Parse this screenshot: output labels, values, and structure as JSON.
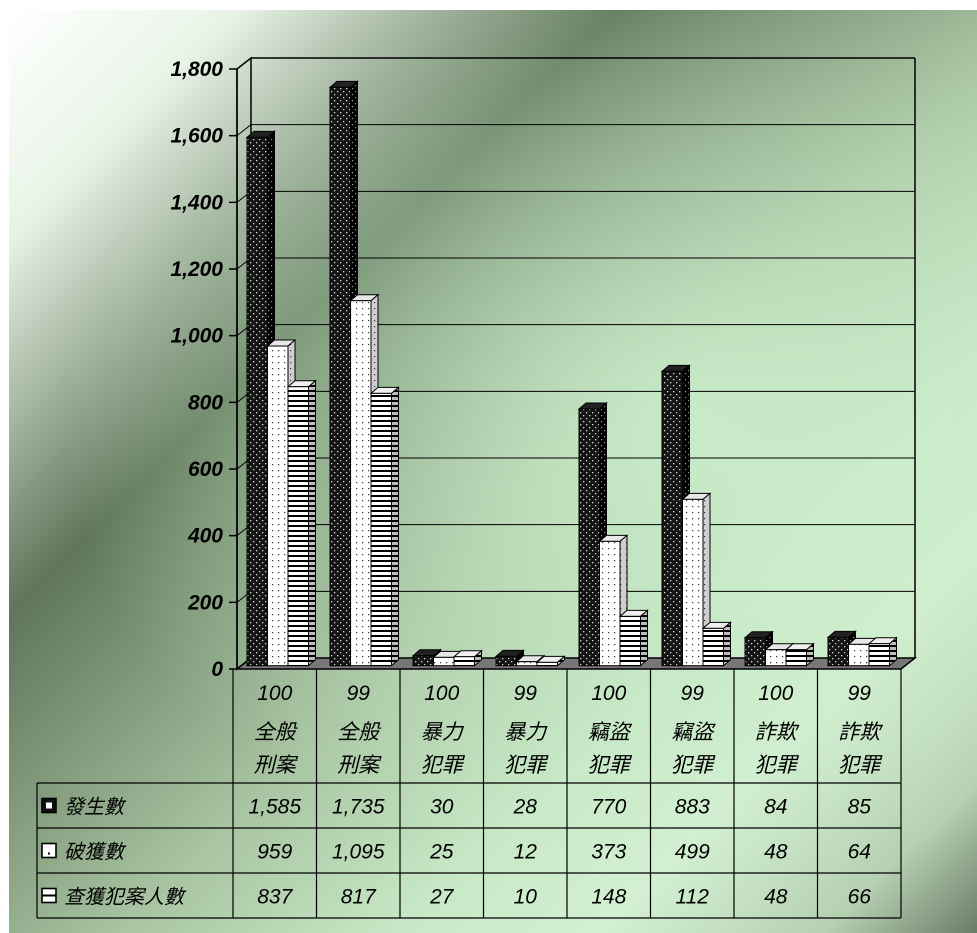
{
  "chart_data": {
    "type": "bar",
    "categories": [
      {
        "year": "100",
        "name_line1": "全般",
        "name_line2": "刑案"
      },
      {
        "year": "99",
        "name_line1": "全般",
        "name_line2": "刑案"
      },
      {
        "year": "100",
        "name_line1": "暴力",
        "name_line2": "犯罪"
      },
      {
        "year": "99",
        "name_line1": "暴力",
        "name_line2": "犯罪"
      },
      {
        "year": "100",
        "name_line1": "竊盜",
        "name_line2": "犯罪"
      },
      {
        "year": "99",
        "name_line1": "竊盜",
        "name_line2": "犯罪"
      },
      {
        "year": "100",
        "name_line1": "詐欺",
        "name_line2": "犯罪"
      },
      {
        "year": "99",
        "name_line1": "詐欺",
        "name_line2": "犯罪"
      }
    ],
    "series": [
      {
        "name": "發生數",
        "values": [
          1585,
          1735,
          30,
          28,
          770,
          883,
          84,
          85
        ],
        "labels": [
          "1,585",
          "1,735",
          "30",
          "28",
          "770",
          "883",
          "84",
          "85"
        ]
      },
      {
        "name": "破獲數",
        "values": [
          959,
          1095,
          25,
          12,
          373,
          499,
          48,
          64
        ],
        "labels": [
          "959",
          "1,095",
          "25",
          "12",
          "373",
          "499",
          "48",
          "64"
        ]
      },
      {
        "name": "查獲犯案人數",
        "values": [
          837,
          817,
          27,
          10,
          148,
          112,
          48,
          66
        ],
        "labels": [
          "837",
          "817",
          "27",
          "10",
          "148",
          "112",
          "48",
          "66"
        ]
      }
    ],
    "y_ticks": [
      "0",
      "200",
      "400",
      "600",
      "800",
      "1,000",
      "1,200",
      "1,400",
      "1,600",
      "1,800"
    ],
    "ylim": [
      0,
      1800
    ],
    "grid": true,
    "legend": "data-table",
    "colors": {
      "series1": "#111111",
      "series2": "#ffffff",
      "series3": "#ffffff",
      "grid": "#000000"
    }
  }
}
